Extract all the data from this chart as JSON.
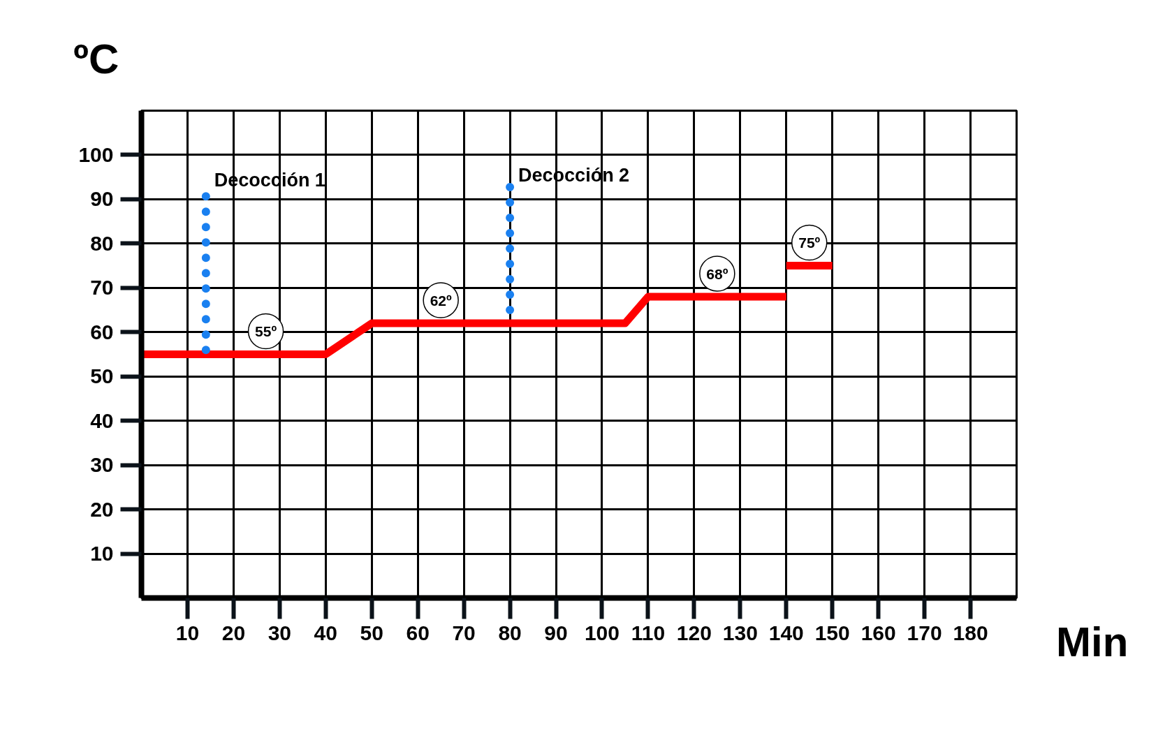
{
  "chart_data": {
    "type": "line",
    "xlabel": "Min",
    "ylabel": "ºC",
    "xlim": [
      0,
      190
    ],
    "ylim": [
      0,
      110
    ],
    "xticks": [
      10,
      20,
      30,
      40,
      50,
      60,
      70,
      80,
      90,
      100,
      110,
      120,
      130,
      140,
      150,
      160,
      170,
      180
    ],
    "yticks": [
      10,
      20,
      30,
      40,
      50,
      60,
      70,
      80,
      90,
      100
    ],
    "grid": true,
    "series": [
      {
        "color": "#ff0000",
        "line_style": "solid",
        "x": [
          0,
          40,
          50,
          105,
          110,
          140
        ],
        "values": [
          55,
          55,
          62,
          62,
          68,
          68
        ]
      },
      {
        "color": "#ff0000",
        "line_style": "solid",
        "x": [
          140,
          150
        ],
        "values": [
          75,
          75
        ]
      },
      {
        "name": "Decocción 1",
        "color": "#1a80f0",
        "line_style": "dotted",
        "x": [
          14,
          14
        ],
        "values": [
          56,
          92
        ]
      },
      {
        "name": "Decocción 2",
        "color": "#1a80f0",
        "line_style": "dotted",
        "x": [
          80,
          80
        ],
        "values": [
          65,
          93
        ]
      }
    ],
    "annotations": [
      {
        "text": "55º",
        "x": 27,
        "y": 55
      },
      {
        "text": "62º",
        "x": 65,
        "y": 62
      },
      {
        "text": "68º",
        "x": 125,
        "y": 68
      },
      {
        "text": "75º",
        "x": 145,
        "y": 75
      }
    ]
  }
}
